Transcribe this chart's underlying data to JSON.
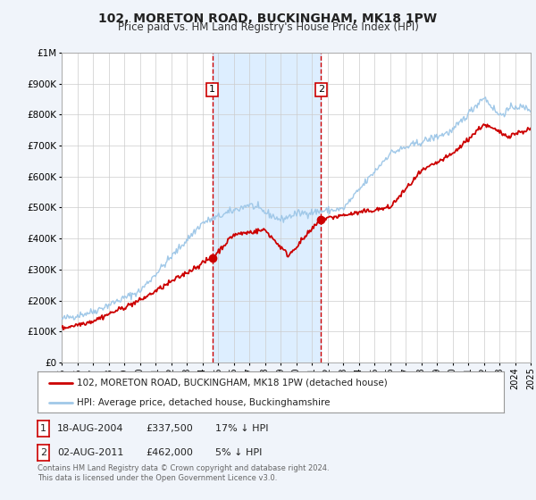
{
  "title": "102, MORETON ROAD, BUCKINGHAM, MK18 1PW",
  "subtitle": "Price paid vs. HM Land Registry's House Price Index (HPI)",
  "background_color": "#f0f4fa",
  "plot_bg_color": "#ffffff",
  "grid_color": "#cccccc",
  "hpi_color": "#a0c8e8",
  "price_color": "#cc0000",
  "marker_color": "#cc0000",
  "shaded_region": [
    2004.64,
    2011.59
  ],
  "shaded_color": "#ddeeff",
  "vline_color": "#cc0000",
  "sale1_x": 2004.64,
  "sale1_y": 337500,
  "sale2_x": 2011.59,
  "sale2_y": 462000,
  "annotation1_label": "1",
  "annotation2_label": "2",
  "legend_label_price": "102, MORETON ROAD, BUCKINGHAM, MK18 1PW (detached house)",
  "legend_label_hpi": "HPI: Average price, detached house, Buckinghamshire",
  "table_row1": [
    "1",
    "18-AUG-2004",
    "£337,500",
    "17% ↓ HPI"
  ],
  "table_row2": [
    "2",
    "02-AUG-2011",
    "£462,000",
    "5% ↓ HPI"
  ],
  "footer": "Contains HM Land Registry data © Crown copyright and database right 2024.\nThis data is licensed under the Open Government Licence v3.0.",
  "ylim": [
    0,
    1000000
  ],
  "xlim_start": 1995,
  "xlim_end": 2025,
  "ytick_vals": [
    0,
    100000,
    200000,
    300000,
    400000,
    500000,
    600000,
    700000,
    800000,
    900000,
    1000000
  ],
  "ytick_labels": [
    "£0",
    "£100K",
    "£200K",
    "£300K",
    "£400K",
    "£500K",
    "£600K",
    "£700K",
    "£800K",
    "£900K",
    "£1M"
  ]
}
